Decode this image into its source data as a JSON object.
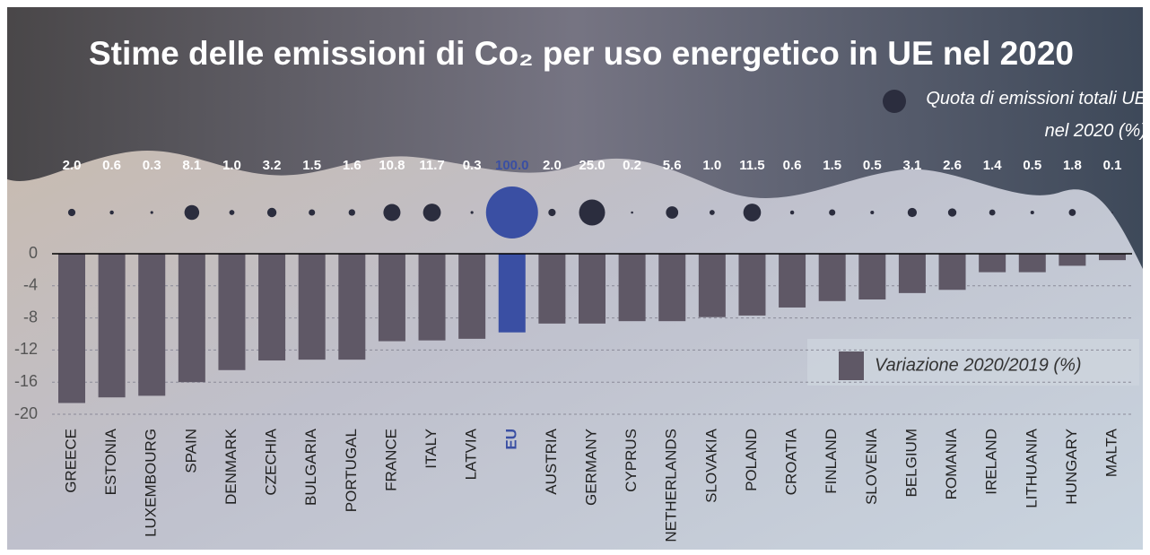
{
  "chart_data": {
    "type": "bar",
    "title": "Stime delle emissioni di Co₂ per uso energetico in UE nel 2020",
    "categories": [
      "GREECE",
      "ESTONIA",
      "LUXEMBOURG",
      "SPAIN",
      "DENMARK",
      "CZECHIA",
      "BULGARIA",
      "PORTUGAL",
      "FRANCE",
      "ITALY",
      "LATVIA",
      "EU",
      "AUSTRIA",
      "GERMANY",
      "CYPRUS",
      "NETHERLANDS",
      "SLOVAKIA",
      "POLAND",
      "CROATIA",
      "FINLAND",
      "SLOVENIA",
      "BELGIUM",
      "ROMANIA",
      "IRELAND",
      "LITHUANIA",
      "HUNGARY",
      "MALTA"
    ],
    "series": [
      {
        "name": "Variazione 2020/2019 (%)",
        "color": "#5f5866",
        "colors": [
          "#5f5866",
          "#5f5866",
          "#5f5866",
          "#5f5866",
          "#5f5866",
          "#5f5866",
          "#5f5866",
          "#5f5866",
          "#5f5866",
          "#5f5866",
          "#5f5866",
          "#3a4fa3",
          "#5f5866",
          "#5f5866",
          "#5f5866",
          "#5f5866",
          "#5f5866",
          "#5f5866",
          "#5f5866",
          "#5f5866",
          "#5f5866",
          "#5f5866",
          "#5f5866",
          "#5f5866",
          "#5f5866",
          "#5f5866",
          "#5f5866"
        ],
        "values": [
          -18.6,
          -17.9,
          -17.7,
          -16.0,
          -14.5,
          -13.3,
          -13.2,
          -13.2,
          -10.9,
          -10.8,
          -10.6,
          -9.8,
          -8.7,
          -8.7,
          -8.4,
          -8.4,
          -7.9,
          -7.7,
          -6.7,
          -5.9,
          -5.7,
          -4.9,
          -4.5,
          -2.3,
          -2.3,
          -1.5,
          -0.8
        ]
      },
      {
        "name": "Quota di emissioni totali UE nel 2020 (%)",
        "type": "bubble",
        "color": "#2b2d3e",
        "colors": [
          "#2b2d3e",
          "#2b2d3e",
          "#2b2d3e",
          "#2b2d3e",
          "#2b2d3e",
          "#2b2d3e",
          "#2b2d3e",
          "#2b2d3e",
          "#2b2d3e",
          "#2b2d3e",
          "#2b2d3e",
          "#3a4fa3",
          "#2b2d3e",
          "#2b2d3e",
          "#2b2d3e",
          "#2b2d3e",
          "#2b2d3e",
          "#2b2d3e",
          "#2b2d3e",
          "#2b2d3e",
          "#2b2d3e",
          "#2b2d3e",
          "#2b2d3e",
          "#2b2d3e",
          "#2b2d3e",
          "#2b2d3e",
          "#2b2d3e"
        ],
        "values": [
          2.0,
          0.6,
          0.3,
          8.1,
          1.0,
          3.2,
          1.5,
          1.6,
          10.8,
          11.7,
          0.3,
          100.0,
          2.0,
          25.0,
          0.2,
          5.6,
          1.0,
          11.5,
          0.6,
          1.5,
          0.5,
          3.1,
          2.6,
          1.4,
          0.5,
          1.8,
          0.1
        ],
        "value_labels": [
          "2.0",
          "0.6",
          "0.3",
          "8.1",
          "1.0",
          "3.2",
          "1.5",
          "1.6",
          "10.8",
          "11.7",
          "0.3",
          "100.0",
          "2.0",
          "25.0",
          "0.2",
          "5.6",
          "1.0",
          "11.5",
          "0.6",
          "1.5",
          "0.5",
          "3.1",
          "2.6",
          "1.4",
          "0.5",
          "1.8",
          "0.1"
        ]
      }
    ],
    "ylim": [
      -20,
      0
    ],
    "yticks": [
      0,
      -4,
      -8,
      -12,
      -16,
      -20
    ],
    "grid": true
  }
}
